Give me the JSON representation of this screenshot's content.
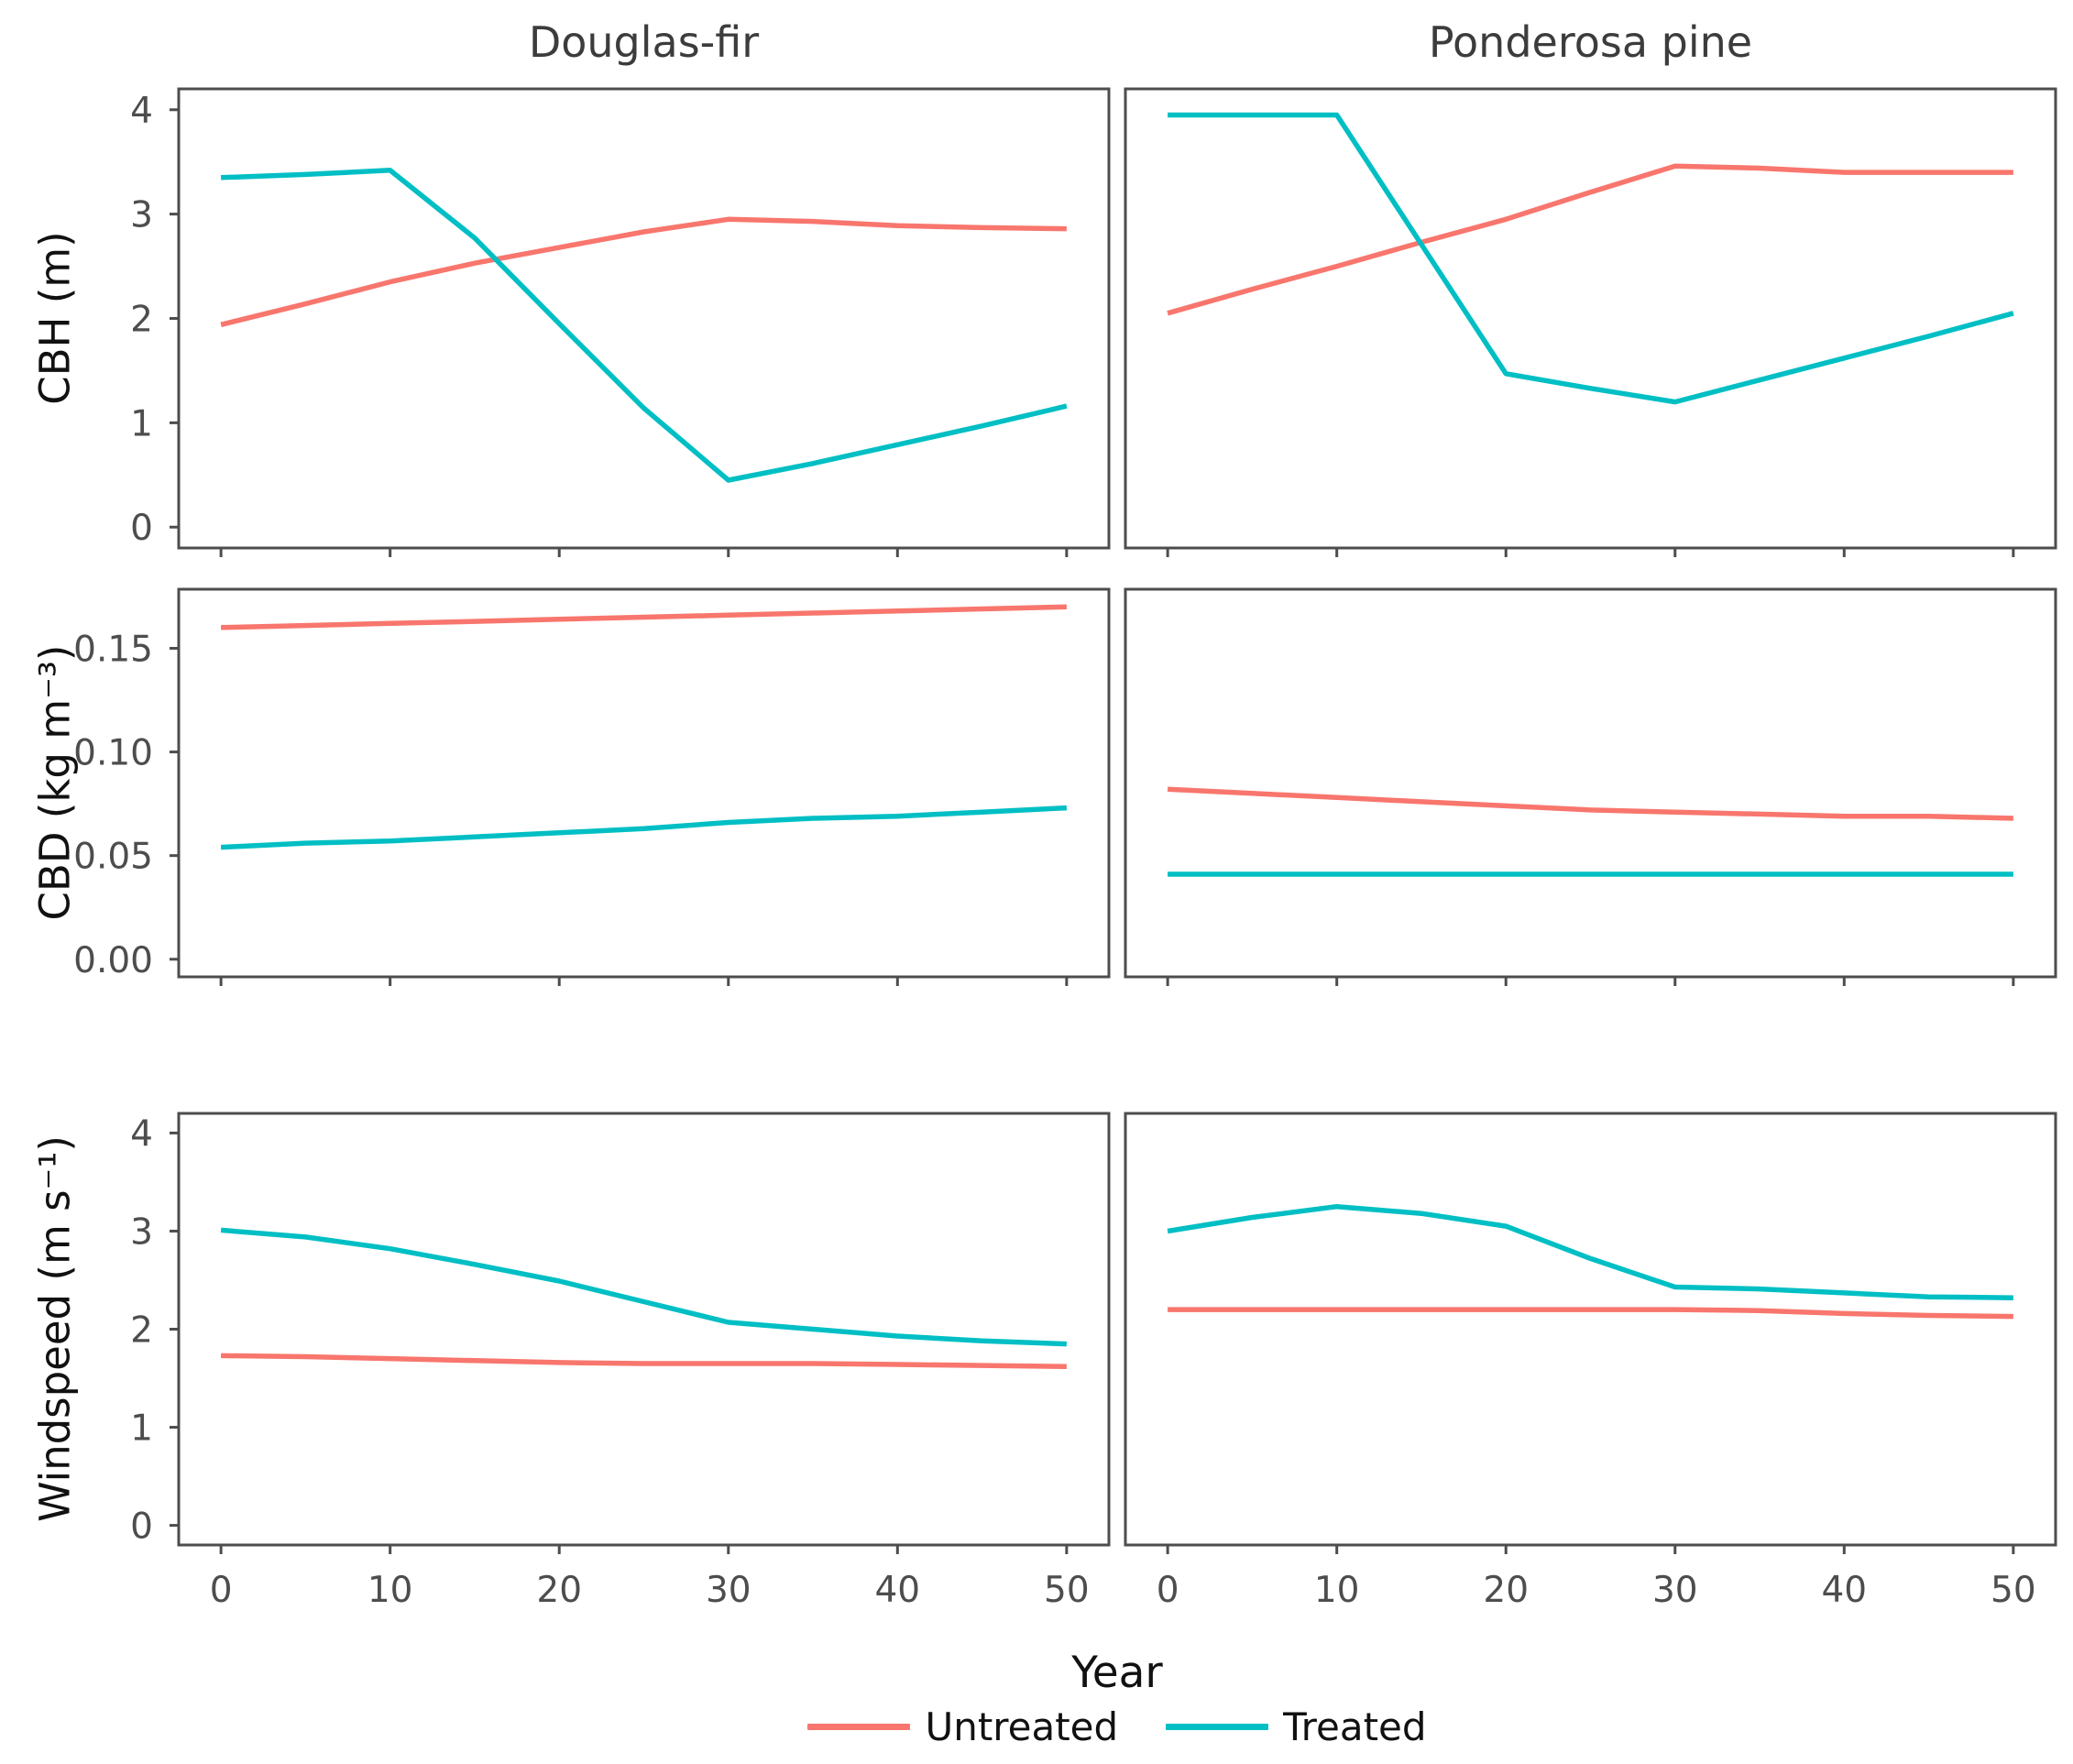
{
  "figure": {
    "facet_titles": [
      "Douglas-fir",
      "Ponderosa pine"
    ],
    "row_labels": [
      "CBH (m)",
      "CBD (kg m⁻³)",
      "Windspeed (m s⁻¹)"
    ],
    "x_axis_label": "Year",
    "legend": {
      "items": [
        {
          "label": "Untreated",
          "color": "#F8766D"
        },
        {
          "label": "Treated",
          "color": "#00BFC4"
        }
      ]
    },
    "colors": {
      "untreated": "#F8766D",
      "treated": "#00BFC4",
      "panel_border": "#4D4D4D",
      "tick_mark": "#4D4D4D",
      "tick_label": "#4D4D4D",
      "facet_title": "#3C3C3C"
    }
  },
  "chart_data": [
    {
      "type": "line",
      "row": 0,
      "col": 0,
      "facet": "Douglas-fir",
      "ylabel": "CBH (m)",
      "x": [
        0,
        5,
        10,
        15,
        20,
        25,
        30,
        35,
        40,
        45,
        50
      ],
      "xlim": [
        0,
        50
      ],
      "ylim": [
        0,
        4
      ],
      "xticks": [
        "0",
        "10",
        "20",
        "30",
        "40",
        "50"
      ],
      "xtick_vals": [
        0,
        10,
        20,
        30,
        40,
        50
      ],
      "yticks": [
        "0",
        "1",
        "2",
        "3",
        "4"
      ],
      "ytick_vals": [
        0,
        1,
        2,
        3,
        4
      ],
      "series": [
        {
          "name": "Untreated",
          "color": "#F8766D",
          "values": [
            1.94,
            2.14,
            2.35,
            2.53,
            2.68,
            2.83,
            2.95,
            2.93,
            2.89,
            2.87,
            2.86
          ]
        },
        {
          "name": "Treated",
          "color": "#00BFC4",
          "values": [
            3.35,
            3.38,
            3.42,
            2.77,
            1.95,
            1.14,
            0.45,
            0.61,
            0.79,
            0.97,
            1.16
          ]
        }
      ]
    },
    {
      "type": "line",
      "row": 0,
      "col": 1,
      "facet": "Ponderosa pine",
      "ylabel": "CBH (m)",
      "x": [
        0,
        5,
        10,
        15,
        20,
        25,
        30,
        35,
        40,
        45,
        50
      ],
      "xlim": [
        0,
        50
      ],
      "ylim": [
        0,
        4
      ],
      "xticks": [
        "0",
        "10",
        "20",
        "30",
        "40",
        "50"
      ],
      "xtick_vals": [
        0,
        10,
        20,
        30,
        40,
        50
      ],
      "yticks": [
        "0",
        "1",
        "2",
        "3",
        "4"
      ],
      "ytick_vals": [
        0,
        1,
        2,
        3,
        4
      ],
      "series": [
        {
          "name": "Untreated",
          "color": "#F8766D",
          "values": [
            2.05,
            2.28,
            2.5,
            2.73,
            2.95,
            3.21,
            3.46,
            3.44,
            3.4,
            3.4,
            3.4
          ]
        },
        {
          "name": "Treated",
          "color": "#00BFC4",
          "values": [
            3.95,
            3.95,
            3.95,
            2.71,
            1.47,
            1.33,
            1.2,
            1.41,
            1.62,
            1.83,
            2.05
          ]
        }
      ]
    },
    {
      "type": "line",
      "row": 1,
      "col": 0,
      "facet": "Douglas-fir",
      "ylabel": "CBD (kg m⁻³)",
      "x": [
        0,
        5,
        10,
        15,
        20,
        25,
        30,
        35,
        40,
        45,
        50
      ],
      "xlim": [
        0,
        50
      ],
      "ylim": [
        0,
        0.17
      ],
      "xticks": [
        "0",
        "10",
        "20",
        "30",
        "40",
        "50"
      ],
      "xtick_vals": [
        0,
        10,
        20,
        30,
        40,
        50
      ],
      "yticks": [
        "0.00",
        "0.05",
        "0.10",
        "0.15"
      ],
      "ytick_vals": [
        0,
        0.05,
        0.1,
        0.15
      ],
      "series": [
        {
          "name": "Untreated",
          "color": "#F8766D",
          "values": [
            0.16,
            0.161,
            0.162,
            0.163,
            0.164,
            0.165,
            0.166,
            0.167,
            0.168,
            0.169,
            0.17
          ]
        },
        {
          "name": "Treated",
          "color": "#00BFC4",
          "values": [
            0.054,
            0.056,
            0.057,
            0.059,
            0.061,
            0.063,
            0.066,
            0.068,
            0.069,
            0.071,
            0.073
          ]
        }
      ]
    },
    {
      "type": "line",
      "row": 1,
      "col": 1,
      "facet": "Ponderosa pine",
      "ylabel": "CBD (kg m⁻³)",
      "x": [
        0,
        5,
        10,
        15,
        20,
        25,
        30,
        35,
        40,
        45,
        50
      ],
      "xlim": [
        0,
        50
      ],
      "ylim": [
        0,
        0.17
      ],
      "xticks": [
        "0",
        "10",
        "20",
        "30",
        "40",
        "50"
      ],
      "xtick_vals": [
        0,
        10,
        20,
        30,
        40,
        50
      ],
      "yticks": [
        "0.00",
        "0.05",
        "0.10",
        "0.15"
      ],
      "ytick_vals": [
        0,
        0.05,
        0.1,
        0.15
      ],
      "series": [
        {
          "name": "Untreated",
          "color": "#F8766D",
          "values": [
            0.082,
            0.08,
            0.078,
            0.076,
            0.074,
            0.072,
            0.071,
            0.07,
            0.069,
            0.069,
            0.068
          ]
        },
        {
          "name": "Treated",
          "color": "#00BFC4",
          "values": [
            0.041,
            0.041,
            0.041,
            0.041,
            0.041,
            0.041,
            0.041,
            0.041,
            0.041,
            0.041,
            0.041
          ]
        }
      ]
    },
    {
      "type": "line",
      "row": 2,
      "col": 0,
      "facet": "Douglas-fir",
      "ylabel": "Windspeed (m s⁻¹)",
      "x": [
        0,
        5,
        10,
        15,
        20,
        25,
        30,
        35,
        40,
        45,
        50
      ],
      "xlim": [
        0,
        50
      ],
      "ylim": [
        0,
        4
      ],
      "xticks": [
        "0",
        "10",
        "20",
        "30",
        "40",
        "50"
      ],
      "xtick_vals": [
        0,
        10,
        20,
        30,
        40,
        50
      ],
      "yticks": [
        "0",
        "1",
        "2",
        "3",
        "4"
      ],
      "ytick_vals": [
        0,
        1,
        2,
        3,
        4
      ],
      "series": [
        {
          "name": "Untreated",
          "color": "#F8766D",
          "values": [
            1.73,
            1.72,
            1.7,
            1.68,
            1.66,
            1.65,
            1.65,
            1.65,
            1.64,
            1.63,
            1.62
          ]
        },
        {
          "name": "Treated",
          "color": "#00BFC4",
          "values": [
            3.01,
            2.94,
            2.82,
            2.66,
            2.49,
            2.28,
            2.07,
            2.0,
            1.93,
            1.88,
            1.85
          ]
        }
      ]
    },
    {
      "type": "line",
      "row": 2,
      "col": 1,
      "facet": "Ponderosa pine",
      "ylabel": "Windspeed (m s⁻¹)",
      "x": [
        0,
        5,
        10,
        15,
        20,
        25,
        30,
        35,
        40,
        45,
        50
      ],
      "xlim": [
        0,
        50
      ],
      "ylim": [
        0,
        4
      ],
      "xticks": [
        "0",
        "10",
        "20",
        "30",
        "40",
        "50"
      ],
      "xtick_vals": [
        0,
        10,
        20,
        30,
        40,
        50
      ],
      "yticks": [
        "0",
        "1",
        "2",
        "3",
        "4"
      ],
      "ytick_vals": [
        0,
        1,
        2,
        3,
        4
      ],
      "series": [
        {
          "name": "Untreated",
          "color": "#F8766D",
          "values": [
            2.2,
            2.2,
            2.2,
            2.2,
            2.2,
            2.2,
            2.2,
            2.19,
            2.16,
            2.14,
            2.13
          ]
        },
        {
          "name": "Treated",
          "color": "#00BFC4",
          "values": [
            3.0,
            3.14,
            3.25,
            3.18,
            3.05,
            2.72,
            2.43,
            2.41,
            2.37,
            2.33,
            2.32
          ]
        }
      ]
    }
  ]
}
